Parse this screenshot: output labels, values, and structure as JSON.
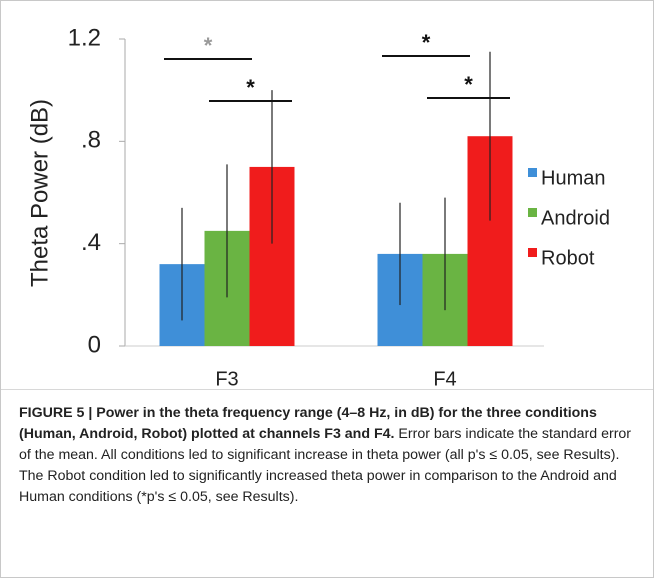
{
  "chart_data": {
    "type": "bar",
    "y_label": "Theta Power (dB)",
    "categories": [
      "F3",
      "F4"
    ],
    "series": [
      {
        "name": "Human",
        "color": "#3f8fd8",
        "values": [
          0.32,
          0.36
        ],
        "errors": [
          0.22,
          0.2
        ]
      },
      {
        "name": "Android",
        "color": "#6ab443",
        "values": [
          0.45,
          0.36
        ],
        "errors": [
          0.26,
          0.22
        ]
      },
      {
        "name": "Robot",
        "color": "#f01c1c",
        "values": [
          0.7,
          0.82
        ],
        "errors": [
          0.3,
          0.33
        ]
      }
    ],
    "ylim": [
      0,
      1.2
    ],
    "yticks": [
      0,
      {
        "value": 0.4,
        "label": ".4"
      },
      {
        "value": 0.8,
        "label": ".8"
      },
      1.2
    ],
    "annotations": [
      {
        "text": "*"
      },
      {
        "text": "*"
      },
      {
        "text": "*"
      },
      {
        "text": "*"
      }
    ],
    "legend": "right"
  },
  "caption": {
    "label": "FIGURE 5 | Power in the theta frequency range (4–8 Hz, in dB) for the three conditions (Human, Android, Robot) plotted at channels F3 and F4.",
    "text": "Error bars indicate the standard error of the mean. All conditions led to significant increase in theta power (all p's ≤ 0.05, see Results). The Robot condition led to significantly increased theta power in comparison to the Android and Human conditions (*p's ≤ 0.05, see Results)."
  }
}
